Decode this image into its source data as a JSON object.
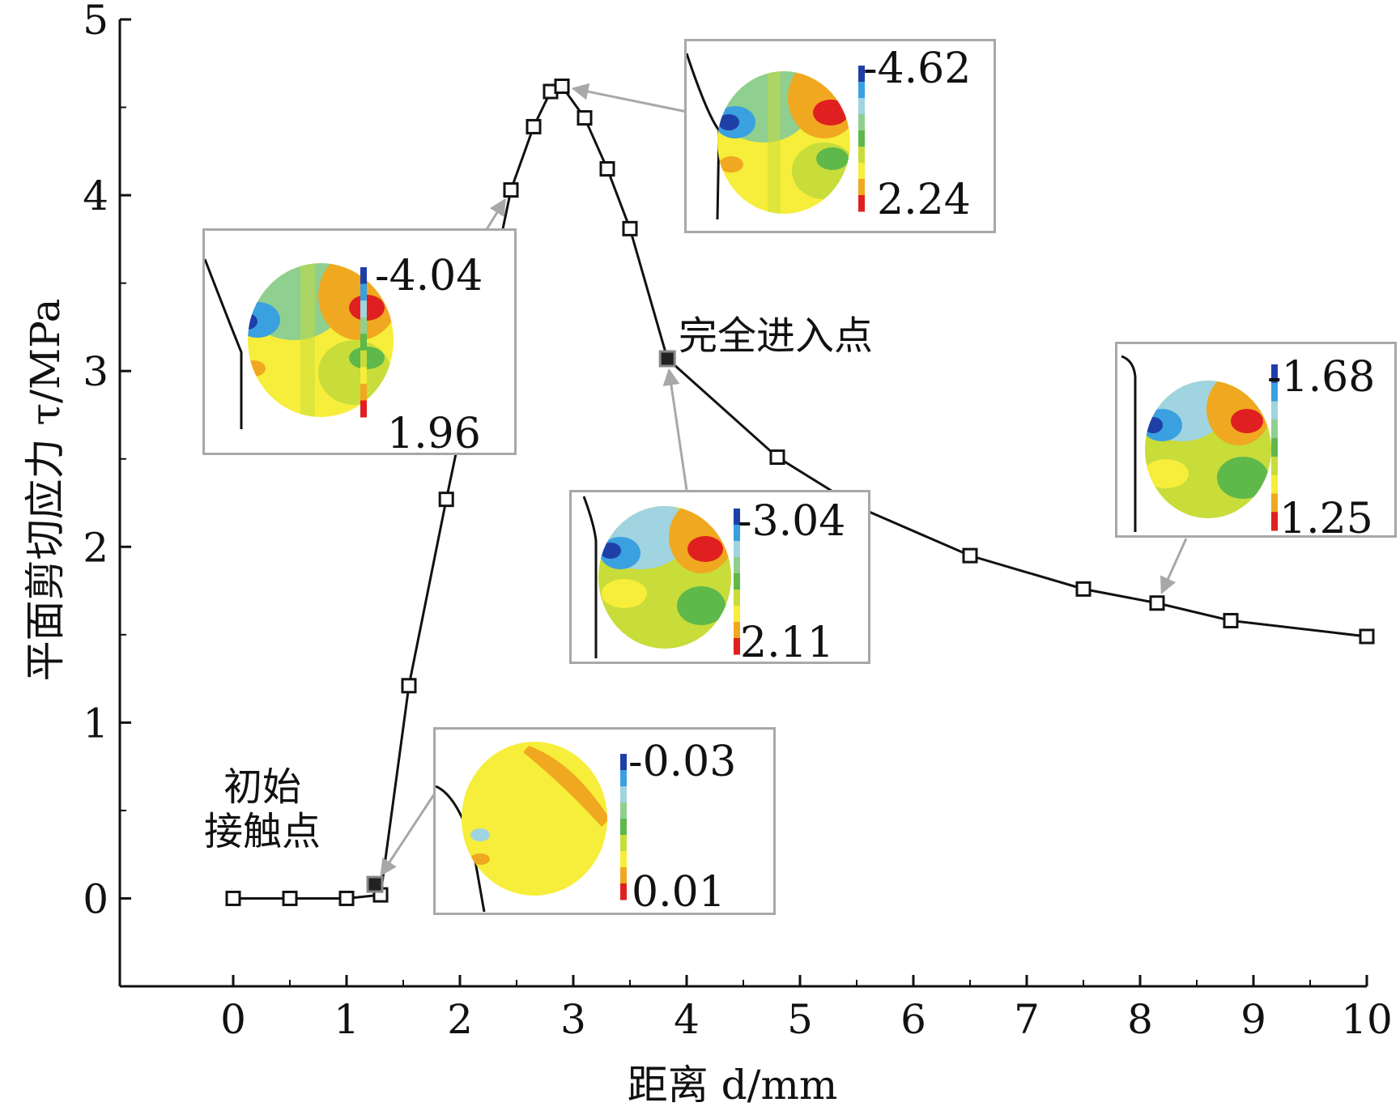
{
  "chart_data": {
    "type": "line",
    "xlabel": "距离 d/mm",
    "ylabel": "平面剪切应力 τ/MPa",
    "xlim": [
      -1,
      10
    ],
    "ylim": [
      -0.5,
      5
    ],
    "xticks": [
      "0",
      "1",
      "2",
      "3",
      "4",
      "5",
      "6",
      "7",
      "8",
      "9",
      "10"
    ],
    "yticks": [
      "0",
      "1",
      "2",
      "3",
      "4",
      "5"
    ],
    "grid": false,
    "series": [
      {
        "marker": "open-square",
        "color": "#111111",
        "x": [
          0.0,
          0.5,
          1.0,
          1.3,
          1.55,
          1.88,
          2.15,
          2.45,
          2.65,
          2.8,
          2.9,
          3.1,
          3.3,
          3.5,
          3.83,
          4.8,
          5.5,
          6.5,
          7.5,
          8.15,
          8.8,
          10.0
        ],
        "y": [
          0.0,
          0.0,
          0.0,
          0.02,
          1.21,
          2.27,
          3.1,
          4.03,
          4.39,
          4.59,
          4.62,
          4.44,
          4.15,
          3.81,
          3.07,
          2.51,
          2.23,
          1.95,
          1.76,
          1.68,
          1.58,
          1.49
        ]
      }
    ],
    "highlighted_points": [
      {
        "x": 1.25,
        "y": 0.08
      },
      {
        "x": 3.83,
        "y": 3.07
      }
    ],
    "annotations": [
      {
        "text_lines": [
          "初始",
          "接触点"
        ],
        "points_to": {
          "x": 1.25,
          "y": 0.08
        }
      },
      {
        "text_lines": [
          "完全进入点"
        ],
        "points_to": {
          "x": 3.83,
          "y": 3.07
        }
      }
    ],
    "insets": [
      {
        "scale_max": "-4.62",
        "scale_min": "2.24",
        "points_to": {
          "x": 2.9,
          "y": 4.62
        }
      },
      {
        "scale_max": "-4.04",
        "scale_min": "1.96",
        "points_to": {
          "x": 2.45,
          "y": 4.03
        }
      },
      {
        "scale_max": "-3.04",
        "scale_min": "2.11",
        "points_to": {
          "x": 3.83,
          "y": 3.07
        }
      },
      {
        "scale_max": "-1.68",
        "scale_min": "1.25",
        "points_to": {
          "x": 8.15,
          "y": 1.68
        }
      },
      {
        "scale_max": "-0.03",
        "scale_min": "0.01",
        "points_to": {
          "x": 1.25,
          "y": 0.08
        }
      }
    ]
  },
  "colors": {
    "line": "#111111",
    "arrow": "#a8a8a8",
    "inset_border": "#a8a8a8",
    "contour_scale": [
      "#1f3fa8",
      "#3aa0e0",
      "#9fd4e0",
      "#8fcf8f",
      "#5eb84a",
      "#c8dc3a",
      "#f6ee3a",
      "#f0a820",
      "#e02020"
    ]
  }
}
